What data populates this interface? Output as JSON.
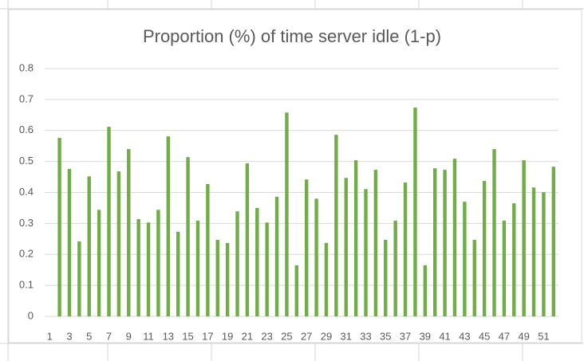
{
  "chart_data": {
    "type": "bar",
    "title": "Proportion (%) of time server idle (1-p)",
    "categories": [
      1,
      null,
      3,
      null,
      5,
      null,
      7,
      null,
      9,
      null,
      11,
      null,
      13,
      null,
      15,
      null,
      17,
      null,
      19,
      null,
      21,
      null,
      23,
      null,
      25,
      null,
      27,
      null,
      29,
      null,
      31,
      null,
      33,
      null,
      35,
      null,
      37,
      null,
      39,
      null,
      41,
      null,
      43,
      null,
      45,
      null,
      47,
      null,
      49,
      null,
      51,
      null
    ],
    "values": [
      0,
      0.576,
      0.476,
      0.242,
      0.452,
      0.344,
      0.612,
      0.468,
      0.54,
      0.314,
      0.303,
      0.344,
      0.581,
      0.273,
      0.514,
      0.309,
      0.427,
      0.247,
      0.237,
      0.339,
      0.494,
      0.35,
      0.303,
      0.386,
      0.658,
      0.165,
      0.442,
      0.38,
      0.237,
      0.586,
      0.447,
      0.504,
      0.411,
      0.473,
      0.247,
      0.309,
      0.432,
      0.674,
      0.165,
      0.478,
      0.473,
      0.509,
      0.37,
      0.247,
      0.437,
      0.54,
      0.309,
      0.365,
      0.504,
      0.416,
      0.401,
      0.483
    ],
    "color": "#70ad47",
    "ylim": [
      0,
      0.8
    ],
    "yticks": [
      0,
      0.1,
      0.2,
      0.3,
      0.4,
      0.5,
      0.6,
      0.7,
      0.8
    ],
    "grid": true
  }
}
